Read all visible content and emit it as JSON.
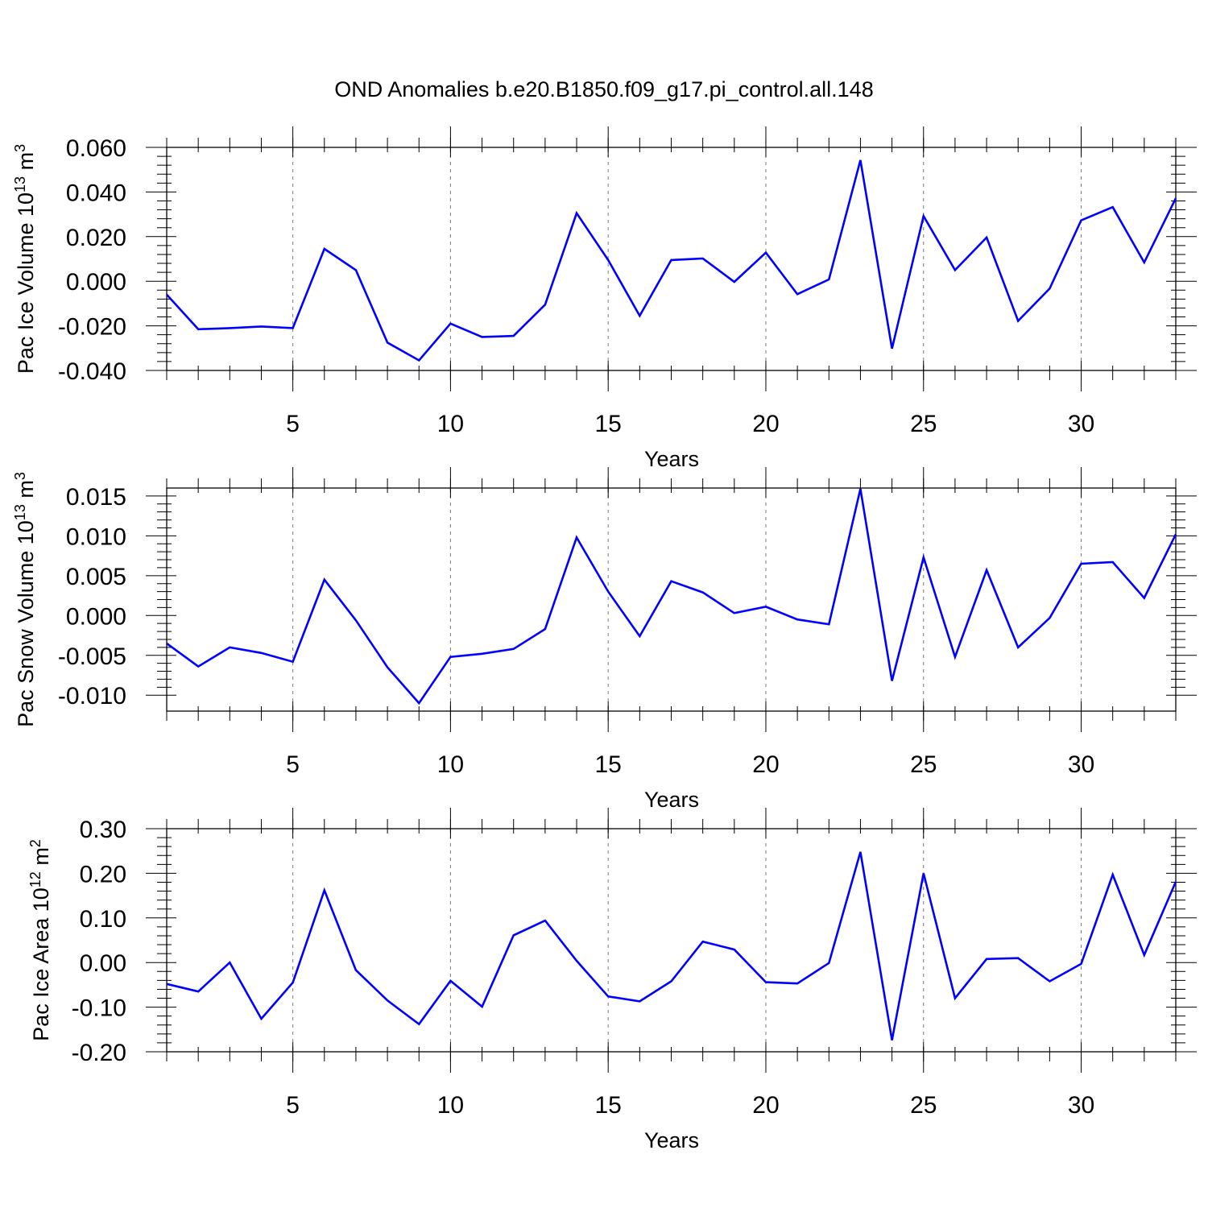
{
  "title": "OND Anomalies b.e20.B1850.f09_g17.pi_control.all.148",
  "line_color": "#0000ff",
  "chart_data": [
    {
      "type": "line",
      "xlabel": "Years",
      "ylabel": {
        "prefix": "Pac Ice Volume 10",
        "sup1": "13",
        "mid": " m",
        "sup2": "3"
      },
      "xlim": [
        1,
        33
      ],
      "ylim": [
        -0.04,
        0.06
      ],
      "xticks": [
        5,
        10,
        15,
        20,
        25,
        30
      ],
      "yticks": [
        -0.04,
        -0.02,
        0.0,
        0.02,
        0.04,
        0.06
      ],
      "ytick_labels": [
        "-0.040",
        "-0.020",
        "0.000",
        "0.020",
        "0.040",
        "0.060"
      ],
      "x": [
        1,
        2,
        3,
        4,
        5,
        6,
        7,
        8,
        9,
        10,
        11,
        12,
        13,
        14,
        15,
        16,
        17,
        18,
        19,
        20,
        21,
        22,
        23,
        24,
        25,
        26,
        27,
        28,
        29,
        30,
        31,
        32,
        33
      ],
      "series": [
        {
          "values": [
            -0.006,
            -0.0215,
            -0.021,
            -0.0203,
            -0.021,
            0.0145,
            0.005,
            -0.0275,
            -0.0355,
            -0.019,
            -0.025,
            -0.0245,
            -0.0105,
            0.0305,
            0.0095,
            -0.0155,
            0.0095,
            0.0102,
            -0.0003,
            0.0128,
            -0.0058,
            0.0008,
            0.0543,
            -0.0302,
            0.0292,
            0.005,
            0.0196,
            -0.0178,
            -0.0033,
            0.0273,
            0.0332,
            0.0084,
            0.0372
          ]
        }
      ]
    },
    {
      "type": "line",
      "xlabel": "Years",
      "ylabel": {
        "prefix": "Pac Snow Volume 10",
        "sup1": "13",
        "mid": " m",
        "sup2": "3"
      },
      "xlim": [
        1,
        33
      ],
      "ylim": [
        -0.012,
        0.016
      ],
      "xticks": [
        5,
        10,
        15,
        20,
        25,
        30
      ],
      "yticks": [
        -0.01,
        -0.005,
        0.0,
        0.005,
        0.01,
        0.015
      ],
      "ytick_labels": [
        "-0.010",
        "-0.005",
        "0.000",
        "0.005",
        "0.010",
        "0.015"
      ],
      "x": [
        1,
        2,
        3,
        4,
        5,
        6,
        7,
        8,
        9,
        10,
        11,
        12,
        13,
        14,
        15,
        16,
        17,
        18,
        19,
        20,
        21,
        22,
        23,
        24,
        25,
        26,
        27,
        28,
        29,
        30,
        31,
        32,
        33
      ],
      "series": [
        {
          "values": [
            -0.0035,
            -0.0064,
            -0.004,
            -0.0047,
            -0.0058,
            0.0045,
            -0.0006,
            -0.0065,
            -0.011,
            -0.0052,
            -0.0048,
            -0.0042,
            -0.0017,
            0.0098,
            0.003,
            -0.0026,
            0.0043,
            0.0029,
            0.0003,
            0.0011,
            -0.0005,
            -0.0011,
            0.0159,
            -0.0082,
            0.0073,
            -0.0052,
            0.0057,
            -0.004,
            -0.0003,
            0.0065,
            0.0067,
            0.0022,
            0.0102
          ]
        }
      ]
    },
    {
      "type": "line",
      "xlabel": "Years",
      "ylabel": {
        "prefix": "Pac Ice Area 10",
        "sup1": "12",
        "mid": " m",
        "sup2": "2"
      },
      "xlim": [
        1,
        33
      ],
      "ylim": [
        -0.2,
        0.3
      ],
      "xticks": [
        5,
        10,
        15,
        20,
        25,
        30
      ],
      "yticks": [
        -0.2,
        -0.1,
        0.0,
        0.1,
        0.2,
        0.3
      ],
      "ytick_labels": [
        "-0.20",
        "-0.10",
        "0.00",
        "0.10",
        "0.20",
        "0.30"
      ],
      "x": [
        1,
        2,
        3,
        4,
        5,
        6,
        7,
        8,
        9,
        10,
        11,
        12,
        13,
        14,
        15,
        16,
        17,
        18,
        19,
        20,
        21,
        22,
        23,
        24,
        25,
        26,
        27,
        28,
        29,
        30,
        31,
        32,
        33
      ],
      "series": [
        {
          "values": [
            -0.048,
            -0.065,
            0.0,
            -0.126,
            -0.045,
            0.162,
            -0.017,
            -0.085,
            -0.138,
            -0.041,
            -0.099,
            0.061,
            0.094,
            0.004,
            -0.076,
            -0.087,
            -0.042,
            0.047,
            0.029,
            -0.044,
            -0.047,
            -0.001,
            0.248,
            -0.174,
            0.2,
            -0.08,
            0.008,
            0.01,
            -0.042,
            -0.003,
            0.197,
            0.017,
            0.181
          ]
        }
      ]
    }
  ]
}
